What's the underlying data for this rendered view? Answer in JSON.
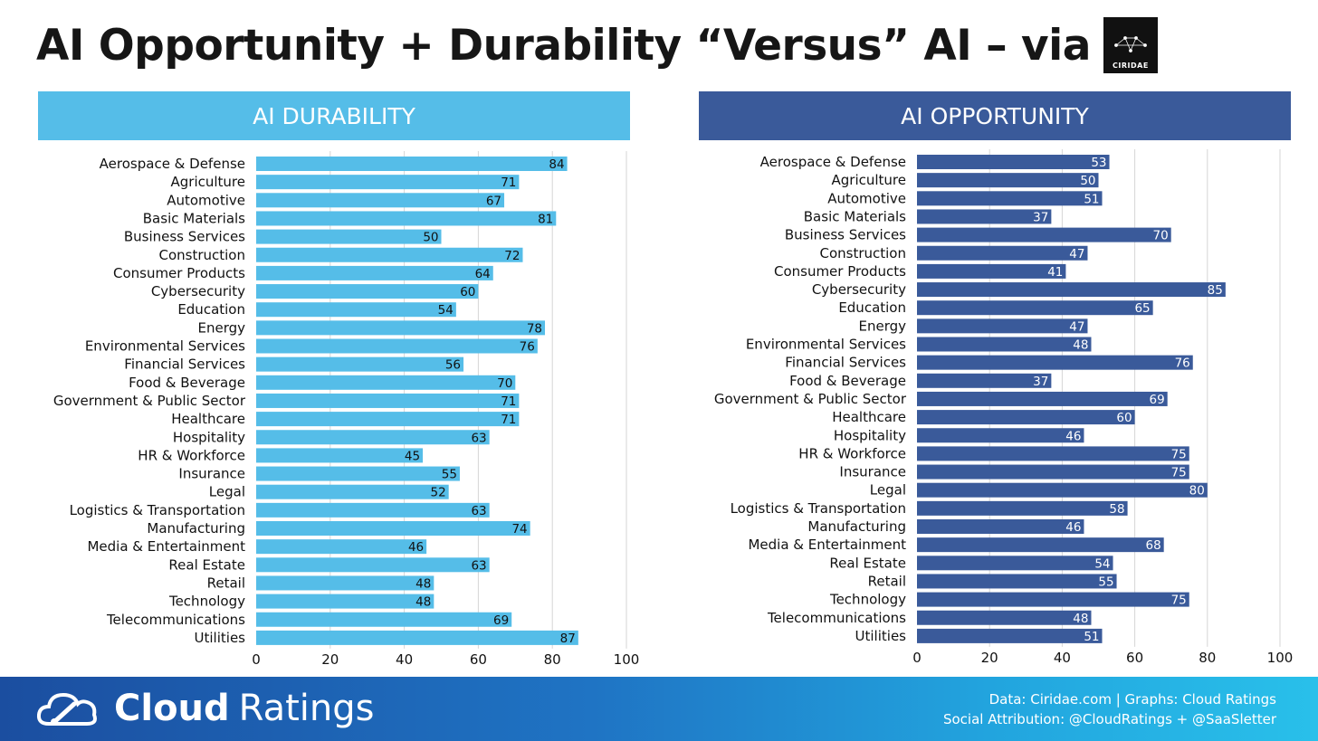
{
  "title": "AI Opportunity + Durability “Versus” AI – via",
  "logo": {
    "text": "CIRIDAE",
    "icon": "constellation-icon"
  },
  "colors": {
    "durability": "#55bde8",
    "opportunity": "#3a5a9a",
    "footer": "#1f74c4"
  },
  "panels": {
    "left": {
      "header": "AI DURABILITY"
    },
    "right": {
      "header": "AI OPPORTUNITY"
    }
  },
  "chart_data": [
    {
      "type": "bar",
      "orientation": "horizontal",
      "title": "AI DURABILITY",
      "categories": [
        "Aerospace & Defense",
        "Agriculture",
        "Automotive",
        "Basic Materials",
        "Business Services",
        "Construction",
        "Consumer Products",
        "Cybersecurity",
        "Education",
        "Energy",
        "Environmental Services",
        "Financial Services",
        "Food & Beverage",
        "Government & Public Sector",
        "Healthcare",
        "Hospitality",
        "HR & Workforce",
        "Insurance",
        "Legal",
        "Logistics & Transportation",
        "Manufacturing",
        "Media & Entertainment",
        "Real Estate",
        "Retail",
        "Technology",
        "Telecommunications",
        "Utilities"
      ],
      "values": [
        84,
        71,
        67,
        81,
        50,
        72,
        64,
        60,
        54,
        78,
        76,
        56,
        70,
        71,
        71,
        63,
        45,
        55,
        52,
        63,
        74,
        46,
        63,
        48,
        48,
        69,
        87
      ],
      "xlim": [
        0,
        100
      ],
      "xticks": [
        0,
        20,
        40,
        60,
        80,
        100
      ],
      "grid": true,
      "color": "#55bde8"
    },
    {
      "type": "bar",
      "orientation": "horizontal",
      "title": "AI OPPORTUNITY",
      "categories": [
        "Aerospace & Defense",
        "Agriculture",
        "Automotive",
        "Basic Materials",
        "Business Services",
        "Construction",
        "Consumer Products",
        "Cybersecurity",
        "Education",
        "Energy",
        "Environmental Services",
        "Financial Services",
        "Food & Beverage",
        "Government & Public Sector",
        "Healthcare",
        "Hospitality",
        "HR & Workforce",
        "Insurance",
        "Legal",
        "Logistics & Transportation",
        "Manufacturing",
        "Media & Entertainment",
        "Real Estate",
        "Retail",
        "Technology",
        "Telecommunications",
        "Utilities"
      ],
      "values": [
        53,
        50,
        51,
        37,
        70,
        47,
        41,
        85,
        65,
        47,
        48,
        76,
        37,
        69,
        60,
        46,
        75,
        75,
        80,
        58,
        46,
        68,
        54,
        55,
        75,
        48,
        51
      ],
      "xlim": [
        0,
        100
      ],
      "xticks": [
        0,
        20,
        40,
        60,
        80,
        100
      ],
      "grid": true,
      "color": "#3a5a9a"
    }
  ],
  "footer": {
    "brand_bold": "Cloud",
    "brand_light": "Ratings",
    "brand_icon": "cloud-gauge-icon",
    "credit_line1": "Data: Ciridae.com | Graphs: Cloud Ratings",
    "credit_line2": "Social Attribution: @CloudRatings + @SaaSletter"
  }
}
